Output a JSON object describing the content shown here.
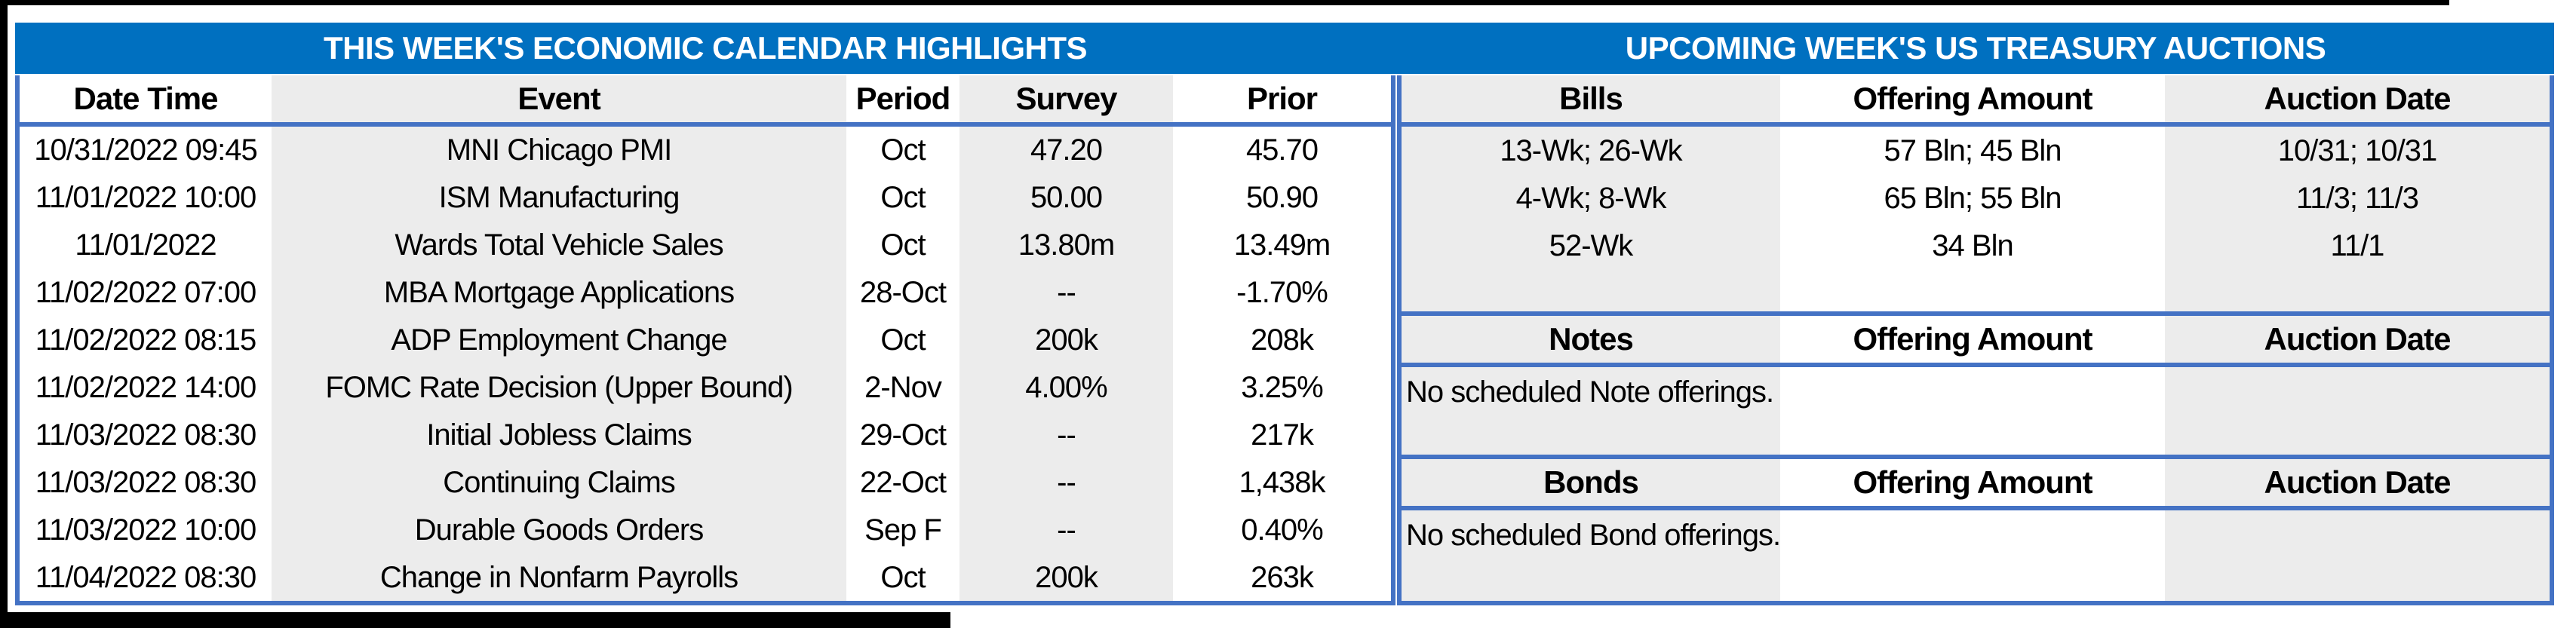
{
  "titles": {
    "calendar": "THIS WEEK'S ECONOMIC CALENDAR HIGHLIGHTS",
    "auctions": "UPCOMING WEEK'S US TREASURY AUCTIONS"
  },
  "calendar": {
    "columns": [
      "Date Time",
      "Event",
      "Period",
      "Survey",
      "Prior"
    ],
    "rows": [
      [
        "10/31/2022 09:45",
        "MNI Chicago PMI",
        "Oct",
        "47.20",
        "45.70"
      ],
      [
        "11/01/2022 10:00",
        "ISM Manufacturing",
        "Oct",
        "50.00",
        "50.90"
      ],
      [
        "11/01/2022",
        "Wards Total Vehicle Sales",
        "Oct",
        "13.80m",
        "13.49m"
      ],
      [
        "11/02/2022 07:00",
        "MBA Mortgage Applications",
        "28-Oct",
        "--",
        "-1.70%"
      ],
      [
        "11/02/2022 08:15",
        "ADP Employment Change",
        "Oct",
        "200k",
        "208k"
      ],
      [
        "11/02/2022 14:00",
        "FOMC Rate Decision (Upper Bound)",
        "2-Nov",
        "4.00%",
        "3.25%"
      ],
      [
        "11/03/2022 08:30",
        "Initial Jobless Claims",
        "29-Oct",
        "--",
        "217k"
      ],
      [
        "11/03/2022 08:30",
        "Continuing Claims",
        "22-Oct",
        "--",
        "1,438k"
      ],
      [
        "11/03/2022 10:00",
        "Durable Goods Orders",
        "Sep F",
        "--",
        "0.40%"
      ],
      [
        "11/04/2022 08:30",
        "Change in Nonfarm Payrolls",
        "Oct",
        "200k",
        "263k"
      ]
    ]
  },
  "auctions": {
    "bills": {
      "header": [
        "Bills",
        "Offering Amount",
        "Auction Date"
      ],
      "rows": [
        [
          "13-Wk; 26-Wk",
          "57 Bln; 45 Bln",
          "10/31; 10/31"
        ],
        [
          "4-Wk; 8-Wk",
          "65 Bln; 55 Bln",
          "11/3; 11/3"
        ],
        [
          "52-Wk",
          "34 Bln",
          "11/1"
        ]
      ]
    },
    "notes": {
      "header": [
        "Notes",
        "Offering Amount",
        "Auction Date"
      ],
      "message": "No scheduled Note offerings."
    },
    "bonds": {
      "header": [
        "Bonds",
        "Offering Amount",
        "Auction Date"
      ],
      "message": "No scheduled Bond offerings."
    }
  },
  "colors": {
    "band_blue": "#0070C0",
    "border_blue": "#4472C4",
    "stripe_gray": "#ECECEC"
  }
}
